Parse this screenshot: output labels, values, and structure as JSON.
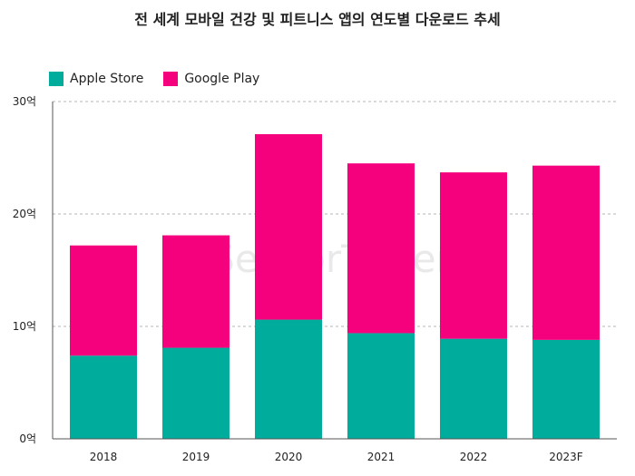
{
  "chart_data": {
    "type": "bar",
    "stacked": true,
    "title": "전 세계 모바일 건강 및 피트니스 앱의 연도별 다운로드 추세",
    "categories": [
      "2018",
      "2019",
      "2020",
      "2021",
      "2022",
      "2023F"
    ],
    "series": [
      {
        "name": "Apple Store",
        "color": "#00ac9b",
        "values": [
          7.4,
          8.1,
          10.6,
          9.4,
          8.9,
          8.8
        ]
      },
      {
        "name": "Google Play",
        "color": "#f5007d",
        "values": [
          9.8,
          10.0,
          16.5,
          15.1,
          14.8,
          15.5
        ]
      }
    ],
    "ylim": [
      0,
      30
    ],
    "yticks": [
      "0억",
      "10억",
      "20억",
      "30억"
    ],
    "grid": true,
    "legend_position": "top-left",
    "watermark": "SensorTower"
  }
}
